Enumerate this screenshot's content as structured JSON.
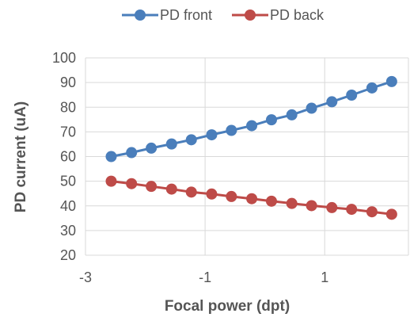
{
  "chart_data": {
    "type": "line",
    "title": "",
    "xlabel": "Focal power (dpt)",
    "ylabel": "PD current (uA)",
    "xlim": [
      -3,
      2.4
    ],
    "ylim": [
      20,
      100
    ],
    "xticks": [
      -3,
      -1,
      1
    ],
    "yticks": [
      20,
      30,
      40,
      50,
      60,
      70,
      80,
      90,
      100
    ],
    "grid": true,
    "legend_position": "top",
    "x": [
      -2.57,
      -2.23,
      -1.9,
      -1.56,
      -1.23,
      -0.89,
      -0.56,
      -0.22,
      0.11,
      0.45,
      0.78,
      1.12,
      1.45,
      1.79,
      2.12
    ],
    "series": [
      {
        "name": "PD front",
        "color": "#4a7ebb",
        "values": [
          60.0,
          61.6,
          63.4,
          65.1,
          66.8,
          68.8,
          70.6,
          72.5,
          74.9,
          76.9,
          79.6,
          82.2,
          84.9,
          87.8,
          90.4
        ]
      },
      {
        "name": "PD back",
        "color": "#be4b48",
        "values": [
          50.0,
          49.0,
          47.9,
          46.8,
          45.6,
          44.8,
          43.8,
          42.9,
          41.9,
          41.0,
          40.1,
          39.3,
          38.6,
          37.6,
          36.6
        ]
      }
    ]
  }
}
